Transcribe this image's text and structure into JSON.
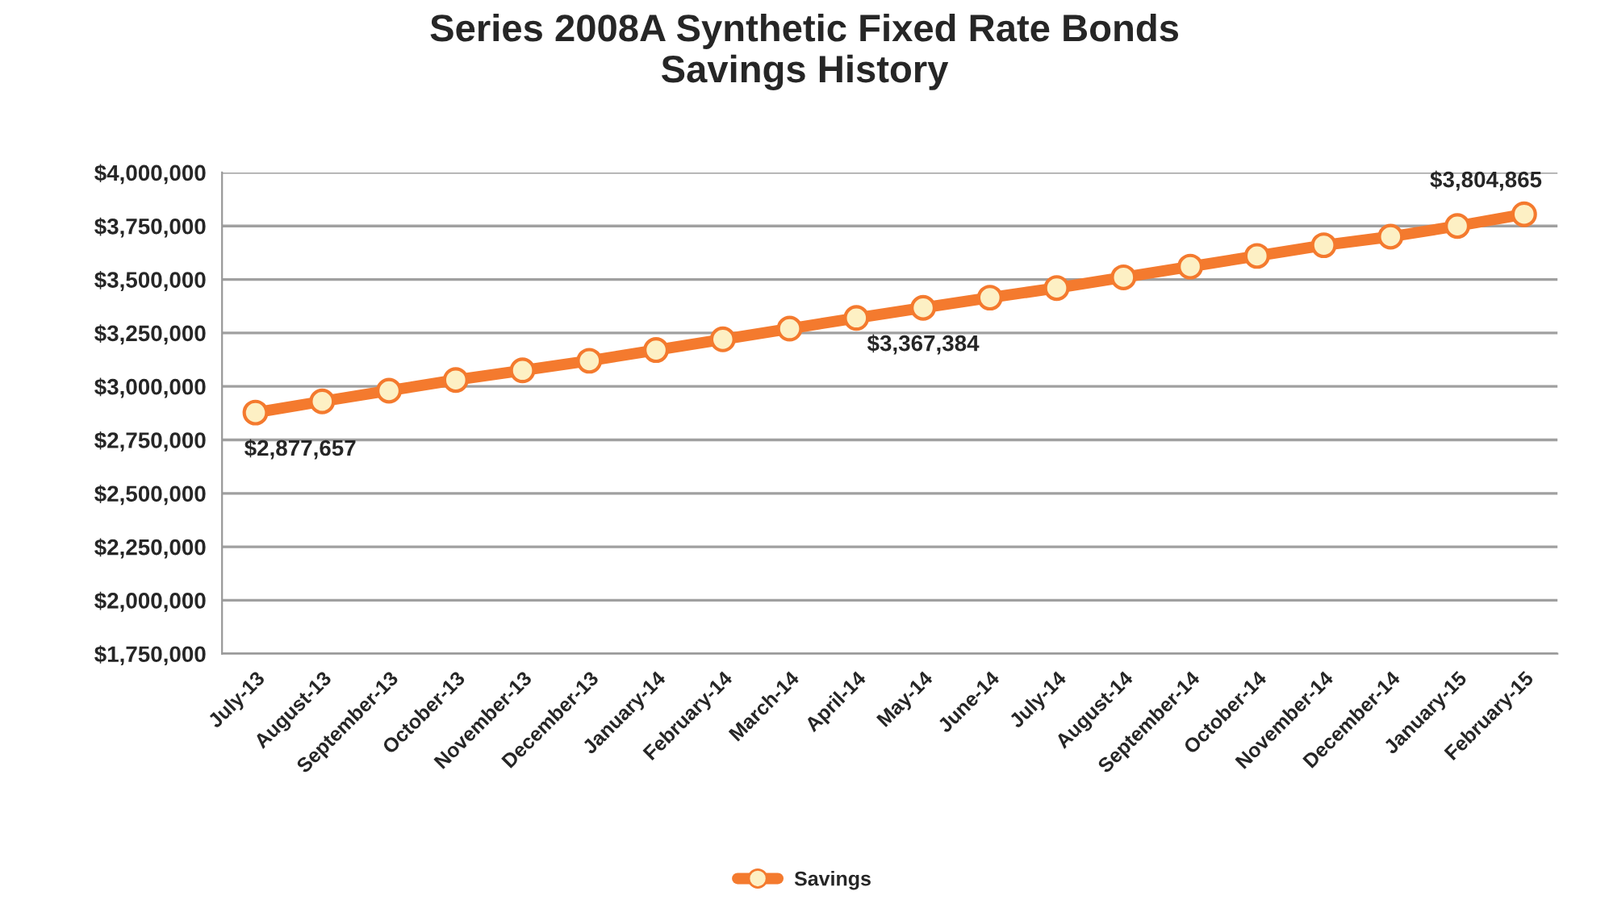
{
  "chart_data": {
    "type": "line",
    "title": "Series 2008A Synthetic Fixed Rate Bonds\nSavings History",
    "categories": [
      "July-13",
      "August-13",
      "September-13",
      "October-13",
      "November-13",
      "December-13",
      "January-14",
      "February-14",
      "March-14",
      "April-14",
      "May-14",
      "June-14",
      "July-14",
      "August-14",
      "September-14",
      "October-14",
      "November-14",
      "December-14",
      "January-15",
      "February-15"
    ],
    "series": [
      {
        "name": "Savings",
        "color": "#f47a2e",
        "values": [
          2877657,
          2930000,
          2980000,
          3030000,
          3075000,
          3120000,
          3170000,
          3220000,
          3270000,
          3320000,
          3367384,
          3415000,
          3460000,
          3510000,
          3560000,
          3610000,
          3660000,
          3700000,
          3750000,
          3804865
        ],
        "value_labels": [
          "$2,877,657",
          null,
          null,
          null,
          null,
          null,
          null,
          null,
          null,
          null,
          "$3,367,384",
          null,
          null,
          null,
          null,
          null,
          null,
          null,
          null,
          "$3,804,865"
        ]
      }
    ],
    "ylim": [
      1750000,
      4000000
    ],
    "yticks": [
      {
        "value": 1750000,
        "label": "$1,750,000"
      },
      {
        "value": 2000000,
        "label": "$2,000,000"
      },
      {
        "value": 2250000,
        "label": "$2,250,000"
      },
      {
        "value": 2500000,
        "label": "$2,500,000"
      },
      {
        "value": 2750000,
        "label": "$2,750,000"
      },
      {
        "value": 3000000,
        "label": "$3,000,000"
      },
      {
        "value": 3250000,
        "label": "$3,250,000"
      },
      {
        "value": 3500000,
        "label": "$3,500,000"
      },
      {
        "value": 3750000,
        "label": "$3,750,000"
      },
      {
        "value": 4000000,
        "label": "$4,000,000"
      }
    ],
    "grid": "y",
    "legend": "bottom",
    "marker": "circle",
    "line_style": "solid"
  }
}
